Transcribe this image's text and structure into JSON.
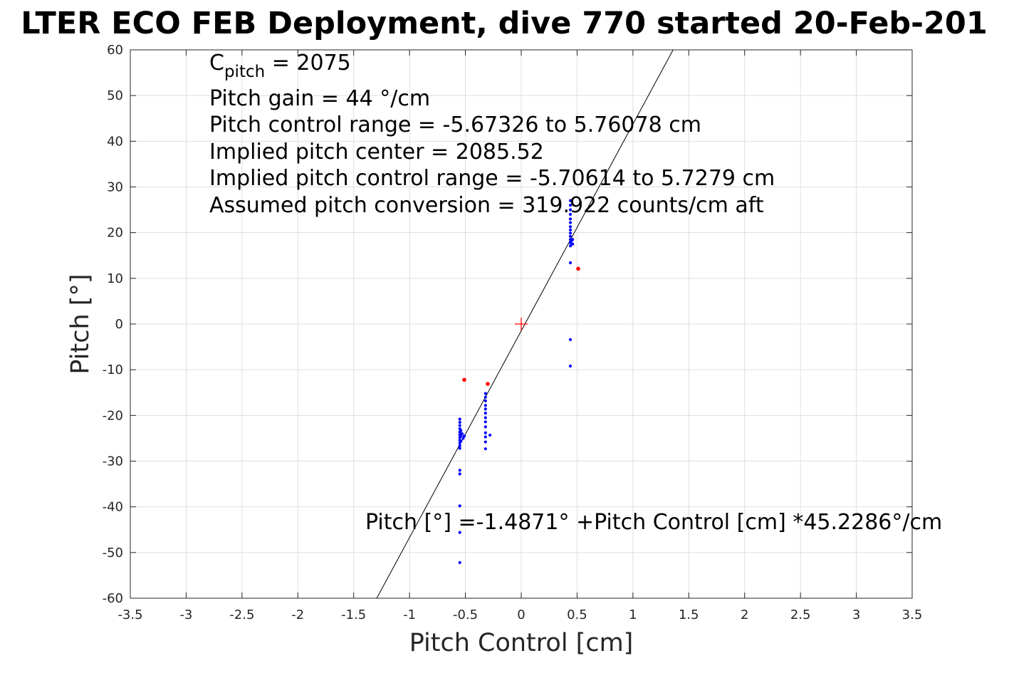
{
  "chart_data": {
    "type": "scatter",
    "title": "LTER ECO FEB Deployment, dive 770 started 20-Feb-201",
    "xlabel": "Pitch Control [cm]",
    "ylabel": "Pitch [°]",
    "xlim": [
      -3.5,
      3.5
    ],
    "ylim": [
      -60,
      60
    ],
    "xticks": [
      -3.5,
      -3,
      -2.5,
      -2,
      -1.5,
      -1,
      -0.5,
      0,
      0.5,
      1,
      1.5,
      2,
      2.5,
      3,
      3.5
    ],
    "xtick_labels": [
      "-3.5",
      "-3",
      "-2.5",
      "-2",
      "-1.5",
      "-1",
      "-0.5",
      "0",
      "0.5",
      "1",
      "1.5",
      "2",
      "2.5",
      "3",
      "3.5"
    ],
    "yticks": [
      -60,
      -50,
      -40,
      -30,
      -20,
      -10,
      0,
      10,
      20,
      30,
      40,
      50,
      60
    ],
    "ytick_labels": [
      "-60",
      "-50",
      "-40",
      "-30",
      "-20",
      "-10",
      "0",
      "10",
      "20",
      "30",
      "40",
      "50",
      "60"
    ],
    "grid": true,
    "annotations": {
      "c_pitch_main": "C",
      "c_pitch_sub": "pitch",
      "c_pitch_value": " = 2075",
      "pitch_gain": "Pitch gain = 44 °/cm",
      "control_range": "Pitch control range = -5.67326 to 5.76078 cm",
      "implied_center": "Implied pitch center = 2085.52",
      "implied_range": "Implied pitch control range = -5.70614 to 5.7279 cm",
      "conversion": "Assumed pitch conversion = 319.922 counts/cm aft",
      "fit_equation": "Pitch [°] =-1.4871° +Pitch Control [cm] *45.2286°/cm"
    },
    "fit_line": {
      "intercept": -1.4871,
      "slope": 45.2286,
      "color": "#000000"
    },
    "center_marker": {
      "x": 0,
      "y": 0,
      "color": "#ff0000"
    },
    "series": [
      {
        "color": "#0000ff",
        "points": [
          [
            -0.55,
            -20.8
          ],
          [
            -0.55,
            -21.5
          ],
          [
            -0.55,
            -22.2
          ],
          [
            -0.55,
            -22.9
          ],
          [
            -0.55,
            -23.6
          ],
          [
            -0.55,
            -24.2
          ],
          [
            -0.55,
            -24.8
          ],
          [
            -0.55,
            -25.4
          ],
          [
            -0.55,
            -26.0
          ],
          [
            -0.55,
            -26.6
          ],
          [
            -0.55,
            -27.2
          ],
          [
            -0.54,
            -23.3
          ],
          [
            -0.54,
            -24.5
          ],
          [
            -0.54,
            -25.6
          ],
          [
            -0.53,
            -24.0
          ],
          [
            -0.52,
            -25.0
          ],
          [
            -0.51,
            -24.5
          ],
          [
            -0.55,
            -32.0
          ],
          [
            -0.55,
            -32.8
          ],
          [
            -0.55,
            -39.8
          ],
          [
            -0.55,
            -45.6
          ],
          [
            -0.55,
            -52.2
          ],
          [
            -0.32,
            -15.2
          ],
          [
            -0.32,
            -16.0
          ],
          [
            -0.32,
            -16.8
          ],
          [
            -0.32,
            -17.8
          ],
          [
            -0.32,
            -18.6
          ],
          [
            -0.32,
            -19.5
          ],
          [
            -0.32,
            -20.5
          ],
          [
            -0.32,
            -21.4
          ],
          [
            -0.32,
            -22.5
          ],
          [
            -0.32,
            -23.8
          ],
          [
            -0.32,
            -24.7
          ],
          [
            -0.32,
            -25.8
          ],
          [
            -0.32,
            -27.3
          ],
          [
            -0.28,
            -24.3
          ],
          [
            0.44,
            27.0
          ],
          [
            0.44,
            26.0
          ],
          [
            0.44,
            25.0
          ],
          [
            0.44,
            24.0
          ],
          [
            0.44,
            23.0
          ],
          [
            0.44,
            22.2
          ],
          [
            0.44,
            21.3
          ],
          [
            0.44,
            20.6
          ],
          [
            0.44,
            19.9
          ],
          [
            0.44,
            19.2
          ],
          [
            0.44,
            18.5
          ],
          [
            0.44,
            17.8
          ],
          [
            0.44,
            17.1
          ],
          [
            0.45,
            18.2
          ],
          [
            0.46,
            18.5
          ],
          [
            0.46,
            17.5
          ],
          [
            0.44,
            13.4
          ],
          [
            0.44,
            -3.4
          ],
          [
            0.44,
            -9.2
          ]
        ]
      },
      {
        "color": "#ff0000",
        "points": [
          [
            -0.51,
            -12.2
          ],
          [
            -0.3,
            -13.1
          ],
          [
            0.51,
            12.1
          ]
        ]
      }
    ]
  }
}
